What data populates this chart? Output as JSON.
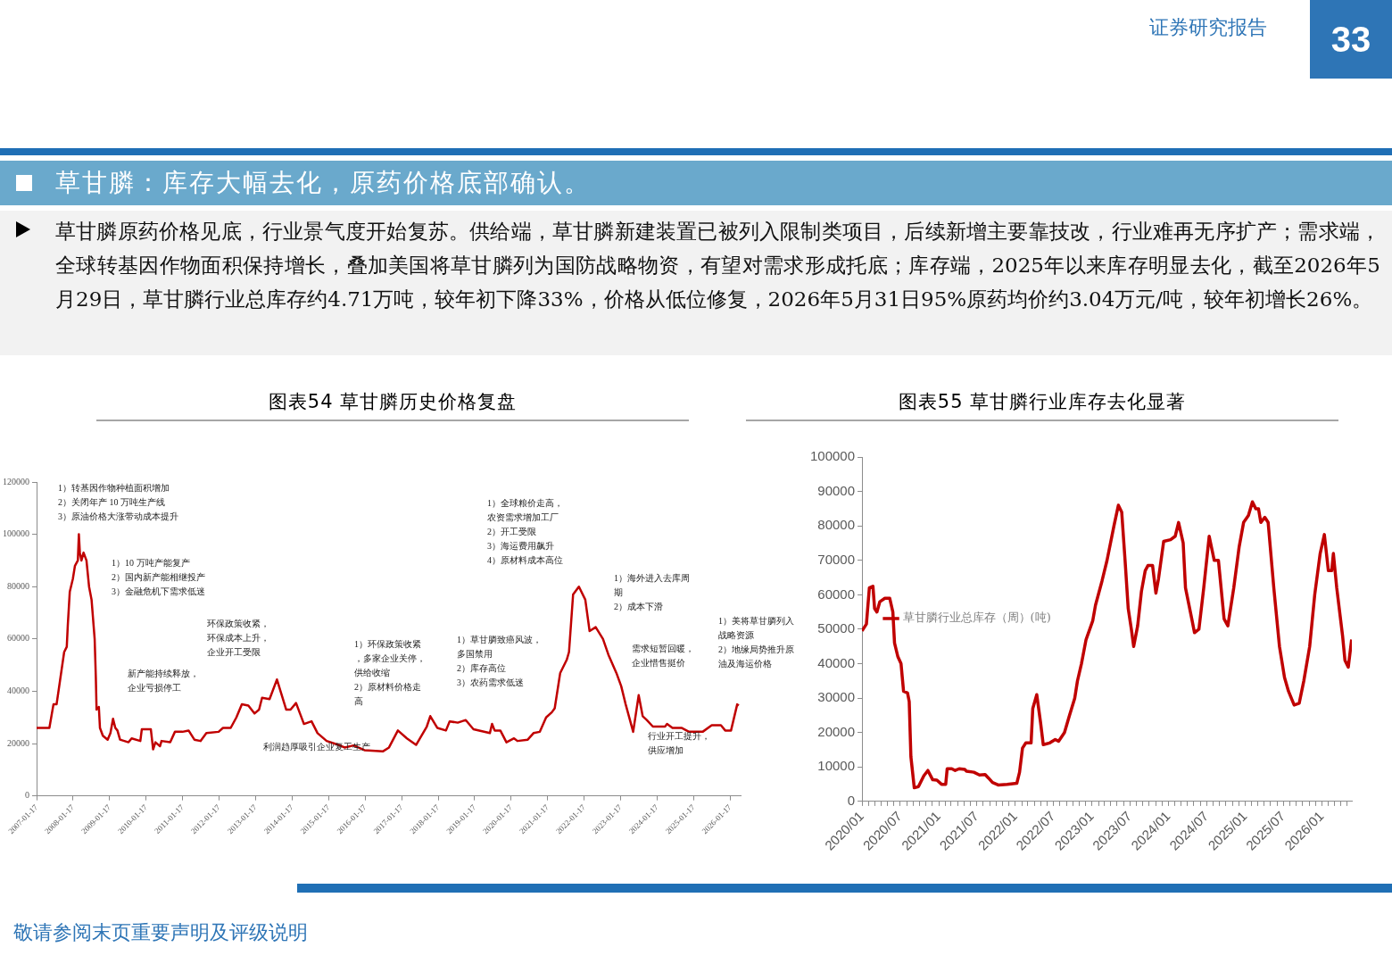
{
  "chart_data": [
    {
      "type": "other",
      "title": "草甘膦：库存大幅去化，原药价格底部确认。",
      "subtitle": "草甘膦原药价格见底，行业景气度开始复苏。供给端，草甘膦新建装置已被列入限制类项目，后续新增主要靠技改，行业难再无序扩产；需求端，全球转基因作物面积保持增长，叠加美国将草甘膦列为国防战略物资，有望对需求形成托底；库存端，2025年以来库存明显去化，截至2026年5月29日，草甘膦行业总库存约4.71万吨，较年初下降33%，价格从低位修复，2026年5月31日95%原药均价约3.04万元/吨，较年初增长26%。",
      "annotations": [
        "证券研究报告",
        "33",
        "敬请参阅末页重要声明及评级说明"
      ]
    },
    {
      "type": "line",
      "title": "图表54  草甘膦历史价格复盘",
      "color": "#c00000",
      "marker": "none",
      "x": [
        "2007-01-17",
        "2007-05-25",
        "2007-07-05",
        "2007-08-05",
        "2007-10-20",
        "2007-11-15",
        "2007-11-25",
        "2007-12-15",
        "2008-01-15",
        "2008-02-05",
        "2008-03-05",
        "2008-03-15",
        "2008-03-25",
        "2008-04-10",
        "2008-05-01",
        "2008-05-30",
        "2008-06-25",
        "2008-07-20",
        "2008-08-20",
        "2008-09-01",
        "2008-09-08",
        "2008-10-01",
        "2008-10-12",
        "2008-11-10",
        "2008-12-28",
        "2009-01-25",
        "2009-02-20",
        "2009-03-15",
        "2009-04-05",
        "2009-05-01",
        "2009-07-25",
        "2009-08-25",
        "2009-11-20",
        "2009-12-05",
        "2010-03-05",
        "2010-03-28",
        "2010-04-20",
        "2010-06-05",
        "2010-06-20",
        "2010-09-15",
        "2010-11-01",
        "2011-01-15",
        "2011-03-18",
        "2011-05-15",
        "2011-07-15",
        "2011-09-12",
        "2012-01-12",
        "2012-02-25",
        "2012-05-12",
        "2012-07-08",
        "2012-09-01",
        "2012-11-05",
        "2013-01-05",
        "2013-02-20",
        "2013-03-22",
        "2013-06-05",
        "2013-08-18",
        "2013-10-01",
        "2013-11-18",
        "2014-01-01",
        "2014-02-25",
        "2014-05-15",
        "2014-07-30",
        "2014-09-28",
        "2014-12-28",
        "2015-04-25",
        "2015-06-25",
        "2015-09-25",
        "2016-01-10",
        "2016-07-12",
        "2016-09-12",
        "2016-12-10",
        "2017-03-10",
        "2017-06-10",
        "2017-09-25",
        "2017-10-30",
        "2018-01-08",
        "2018-04-05",
        "2018-05-12",
        "2018-08-01",
        "2018-10-20",
        "2019-01-05",
        "2019-06-18",
        "2019-07-10",
        "2019-08-05",
        "2019-10-01",
        "2019-12-01",
        "2020-02-15",
        "2020-03-20",
        "2020-07-01",
        "2020-08-28",
        "2020-10-30",
        "2021-01-01",
        "2021-02-28",
        "2021-03-28",
        "2021-05-22",
        "2021-07-26",
        "2021-08-18",
        "2021-09-28",
        "2021-11-25",
        "2022-01-28",
        "2022-03-12",
        "2022-05-12",
        "2022-07-24",
        "2022-09-16",
        "2022-12-05",
        "2023-01-22",
        "2023-03-08",
        "2023-05-22",
        "2023-07-16",
        "2023-08-25",
        "2023-10-05",
        "2023-12-05",
        "2024-04-05",
        "2024-04-25",
        "2024-06-18",
        "2024-09-16",
        "2024-12-01",
        "2025-04-16",
        "2025-07-16",
        "2025-10-16",
        "2025-11-28",
        "2026-01-25",
        "2026-03-28",
        "2026-04-12"
      ],
      "values": [
        26000,
        26000,
        35000,
        35000,
        55000,
        57000,
        65000,
        78000,
        83000,
        88000,
        90000,
        100000,
        93000,
        90000,
        93000,
        90000,
        80000,
        75000,
        60000,
        45000,
        33000,
        34000,
        26000,
        23000,
        21500,
        24000,
        29500,
        26000,
        25000,
        21500,
        20500,
        22000,
        21000,
        25500,
        25500,
        17800,
        20500,
        19000,
        21000,
        20500,
        24500,
        24500,
        25000,
        21500,
        21000,
        24000,
        24500,
        26000,
        26000,
        30000,
        35000,
        34500,
        31500,
        33000,
        37500,
        37000,
        44500,
        39000,
        33000,
        33000,
        35500,
        27500,
        28500,
        24000,
        21000,
        19500,
        18500,
        19300,
        17500,
        17000,
        18500,
        25000,
        22000,
        19500,
        26500,
        30500,
        26000,
        25000,
        28500,
        28000,
        29000,
        25500,
        24000,
        27500,
        25000,
        25000,
        20500,
        22000,
        21000,
        21500,
        24000,
        24500,
        30000,
        32000,
        33500,
        47000,
        52000,
        55000,
        77000,
        80000,
        75000,
        63000,
        64500,
        60000,
        54000,
        47000,
        42000,
        35000,
        24500,
        38500,
        30500,
        29000,
        26500,
        26500,
        27500,
        26000,
        26000,
        24500,
        24500,
        27000,
        27000,
        25000,
        25000,
        35000,
        34500
      ],
      "xlim": [
        "2007-01-17",
        "2026-05-01"
      ],
      "xticks": [
        "2007-01-17",
        "2008-01-17",
        "2009-01-17",
        "2010-01-17",
        "2011-01-17",
        "2012-01-17",
        "2013-01-17",
        "2014-01-17",
        "2015-01-17",
        "2016-01-17",
        "2017-01-17",
        "2018-01-17",
        "2019-01-17",
        "2020-01-17",
        "2021-01-17",
        "2022-01-17",
        "2023-01-17",
        "2024-01-17",
        "2025-01-17",
        "2026-01-17"
      ],
      "ylim": [
        0,
        120000
      ],
      "yticks": [
        0,
        20000,
        40000,
        60000,
        80000,
        100000,
        120000
      ],
      "annotations": [
        "1）转基因作物种植面积增加2）关闭年产 10 万吨生产线3）原油价格大涨带动成本提升",
        "1）10 万吨产能复产2）国内新产能相继投产3）金融危机下需求低迷",
        "环保政策收紧，环保成本上升，企业开工受限",
        "新产能持续释放，企业亏损停工",
        "利润趋厚吸引企业复工生产",
        "1）环保政策收紧，多家企业关停，供给收缩2）原材料价格走高",
        "1）草甘膦致癌风波，多国禁用2）库存高位3）农药需求低迷",
        "1）全球粮价走高，农资需求增加工厂2）开工受限3）海运费用飙升4）原材料成本高位",
        "1）海外进入去库周期2）成本下滑",
        "需求短暂回暖，企业惜售挺价",
        "行业开工提升，供应增加",
        "1）美将草甘膦列入战略资源2）地缘局势推升原油及海运价格"
      ]
    },
    {
      "type": "line",
      "title": "图表55  草甘膦行业库存去化显著",
      "marker": "none",
      "legend": "top",
      "x": [
        "2020-01-01",
        "2020-01-22",
        "2020-02-05",
        "2020-02-22",
        "2020-03-01",
        "2020-03-12",
        "2020-03-26",
        "2020-04-19",
        "2020-05-12",
        "2020-05-27",
        "2020-06-04",
        "2020-06-20",
        "2020-07-05",
        "2020-07-17",
        "2020-08-05",
        "2020-08-13",
        "2020-08-21",
        "2020-09-06",
        "2020-09-26",
        "2020-10-22",
        "2020-11-10",
        "2020-12-03",
        "2020-12-23",
        "2021-01-14",
        "2021-02-03",
        "2021-02-10",
        "2021-03-04",
        "2021-03-20",
        "2021-04-08",
        "2021-05-05",
        "2021-05-13",
        "2021-06-17",
        "2021-07-14",
        "2021-08-10",
        "2021-08-26",
        "2021-09-14",
        "2021-10-11",
        "2021-11-23",
        "2022-01-08",
        "2022-01-21",
        "2022-02-04",
        "2022-02-20",
        "2022-03-17",
        "2022-03-25",
        "2022-04-13",
        "2022-05-01",
        "2022-05-14",
        "2022-06-14",
        "2022-07-10",
        "2022-07-26",
        "2022-08-23",
        "2022-09-16",
        "2022-10-11",
        "2022-10-24",
        "2022-11-12",
        "2022-12-04",
        "2023-01-05",
        "2023-01-18",
        "2023-02-18",
        "2023-03-14",
        "2023-04-16",
        "2023-05-07",
        "2023-05-23",
        "2023-06-08",
        "2023-06-23",
        "2023-07-08",
        "2023-07-19",
        "2023-08-07",
        "2023-08-25",
        "2023-09-12",
        "2023-09-25",
        "2023-10-17",
        "2023-11-02",
        "2023-11-14",
        "2023-12-09",
        "2024-01-11",
        "2024-02-02",
        "2024-02-18",
        "2024-03-11",
        "2024-03-22",
        "2024-04-21",
        "2024-05-04",
        "2024-05-25",
        "2024-06-17",
        "2024-07-13",
        "2024-08-06",
        "2024-08-26",
        "2024-09-22",
        "2024-10-10",
        "2024-11-07",
        "2024-12-03",
        "2024-12-24",
        "2025-01-16",
        "2025-02-04",
        "2025-02-20",
        "2025-03-05",
        "2025-03-16",
        "2025-04-04",
        "2025-04-20",
        "2025-05-17",
        "2025-06-13",
        "2025-07-07",
        "2025-07-26",
        "2025-08-22",
        "2025-09-15",
        "2025-10-07",
        "2025-11-04",
        "2025-11-28",
        "2025-12-24",
        "2026-01-13",
        "2026-02-01",
        "2026-02-17",
        "2026-02-25",
        "2026-03-13",
        "2026-04-10",
        "2026-04-21",
        "2026-05-07",
        "2026-05-23"
      ],
      "series": [
        {
          "name": "草甘膦行业总库存（周）(吨)",
          "color": "#c00000",
          "values": [
            49500,
            51500,
            62000,
            62500,
            56000,
            55000,
            58000,
            59000,
            59000,
            55000,
            46000,
            42000,
            40000,
            32000,
            31500,
            29000,
            13000,
            4000,
            4300,
            7500,
            9000,
            6300,
            6200,
            5000,
            5000,
            9500,
            9500,
            9000,
            9500,
            9300,
            8800,
            8500,
            7700,
            7800,
            6800,
            5500,
            4800,
            5000,
            5300,
            8500,
            15500,
            17000,
            17000,
            27000,
            31000,
            23000,
            16500,
            17000,
            18000,
            17500,
            20000,
            25000,
            30000,
            35000,
            40000,
            47000,
            52500,
            57000,
            64000,
            70000,
            80000,
            86000,
            84000,
            70000,
            56000,
            50000,
            45000,
            51000,
            61000,
            67000,
            68500,
            68500,
            60500,
            64500,
            75500,
            76000,
            77000,
            81000,
            75000,
            62000,
            53000,
            49000,
            50000,
            62000,
            77000,
            70000,
            70000,
            53000,
            51000,
            62000,
            74000,
            81000,
            83000,
            87000,
            85000,
            85000,
            81000,
            82500,
            81000,
            62000,
            45000,
            36000,
            32000,
            28000,
            28500,
            35000,
            45000,
            60000,
            72000,
            77500,
            67000,
            67000,
            72000,
            62000,
            48000,
            41000,
            39000,
            47000
          ]
        }
      ],
      "xlim": [
        "2020-01-01",
        "2026-05-24"
      ],
      "xticks": [
        {
          "value": "2020-01-01",
          "label": "2020/01"
        },
        {
          "value": "2020-02-01",
          "label": null
        },
        {
          "value": "2020-03-01",
          "label": null
        },
        {
          "value": "2020-04-01",
          "label": null
        },
        {
          "value": "2020-05-01",
          "label": null
        },
        {
          "value": "2020-06-01",
          "label": null
        },
        {
          "value": "2020-07-01",
          "label": "2020/07"
        },
        {
          "value": "2020-08-01",
          "label": null
        },
        {
          "value": "2020-09-01",
          "label": null
        },
        {
          "value": "2020-10-01",
          "label": null
        },
        {
          "value": "2020-11-01",
          "label": null
        },
        {
          "value": "2020-12-01",
          "label": null
        },
        {
          "value": "2021-01-01",
          "label": "2021/01"
        },
        {
          "value": "2021-02-01",
          "label": null
        },
        {
          "value": "2021-03-01",
          "label": null
        },
        {
          "value": "2021-04-01",
          "label": null
        },
        {
          "value": "2021-05-01",
          "label": null
        },
        {
          "value": "2021-06-01",
          "label": null
        },
        {
          "value": "2021-07-01",
          "label": "2021/07"
        },
        {
          "value": "2021-08-01",
          "label": null
        },
        {
          "value": "2021-09-01",
          "label": null
        },
        {
          "value": "2021-10-01",
          "label": null
        },
        {
          "value": "2021-11-01",
          "label": null
        },
        {
          "value": "2021-12-01",
          "label": null
        },
        {
          "value": "2022-01-01",
          "label": "2022/01"
        },
        {
          "value": "2022-02-01",
          "label": null
        },
        {
          "value": "2022-03-01",
          "label": null
        },
        {
          "value": "2022-04-01",
          "label": null
        },
        {
          "value": "2022-05-01",
          "label": null
        },
        {
          "value": "2022-06-01",
          "label": null
        },
        {
          "value": "2022-07-01",
          "label": "2022/07"
        },
        {
          "value": "2022-08-01",
          "label": null
        },
        {
          "value": "2022-09-01",
          "label": null
        },
        {
          "value": "2022-10-01",
          "label": null
        },
        {
          "value": "2022-11-01",
          "label": null
        },
        {
          "value": "2022-12-01",
          "label": null
        },
        {
          "value": "2023-01-01",
          "label": "2023/01"
        },
        {
          "value": "2023-02-01",
          "label": null
        },
        {
          "value": "2023-03-01",
          "label": null
        },
        {
          "value": "2023-04-01",
          "label": null
        },
        {
          "value": "2023-05-01",
          "label": null
        },
        {
          "value": "2023-06-01",
          "label": null
        },
        {
          "value": "2023-07-01",
          "label": "2023/07"
        },
        {
          "value": "2023-08-01",
          "label": null
        },
        {
          "value": "2023-09-01",
          "label": null
        },
        {
          "value": "2023-10-01",
          "label": null
        },
        {
          "value": "2023-11-01",
          "label": null
        },
        {
          "value": "2023-12-01",
          "label": null
        },
        {
          "value": "2024-01-01",
          "label": "2024/01"
        },
        {
          "value": "2024-02-01",
          "label": null
        },
        {
          "value": "2024-03-01",
          "label": null
        },
        {
          "value": "2024-04-01",
          "label": null
        },
        {
          "value": "2024-05-01",
          "label": null
        },
        {
          "value": "2024-06-01",
          "label": null
        },
        {
          "value": "2024-07-01",
          "label": "2024/07"
        },
        {
          "value": "2024-08-01",
          "label": null
        },
        {
          "value": "2024-09-01",
          "label": null
        },
        {
          "value": "2024-10-01",
          "label": null
        },
        {
          "value": "2024-11-01",
          "label": null
        },
        {
          "value": "2024-12-01",
          "label": null
        },
        {
          "value": "2025-01-01",
          "label": "2025/01"
        },
        {
          "value": "2025-02-01",
          "label": null
        },
        {
          "value": "2025-03-01",
          "label": null
        },
        {
          "value": "2025-04-01",
          "label": null
        },
        {
          "value": "2025-05-01",
          "label": null
        },
        {
          "value": "2025-06-01",
          "label": null
        },
        {
          "value": "2025-07-01",
          "label": "2025/07"
        },
        {
          "value": "2025-08-01",
          "label": null
        },
        {
          "value": "2025-09-01",
          "label": null
        },
        {
          "value": "2025-10-01",
          "label": null
        },
        {
          "value": "2025-11-01",
          "label": null
        },
        {
          "value": "2025-12-01",
          "label": null
        },
        {
          "value": "2026-01-01",
          "label": "2026/01"
        },
        {
          "value": "2026-02-01",
          "label": null
        },
        {
          "value": "2026-03-01",
          "label": null
        },
        {
          "value": "2026-04-01",
          "label": null
        },
        {
          "value": "2026-05-01",
          "label": null
        }
      ],
      "ylim": [
        0,
        100000
      ],
      "yticks": [
        0,
        10000,
        20000,
        30000,
        40000,
        50000,
        60000,
        70000,
        80000,
        90000,
        100000
      ]
    }
  ]
}
